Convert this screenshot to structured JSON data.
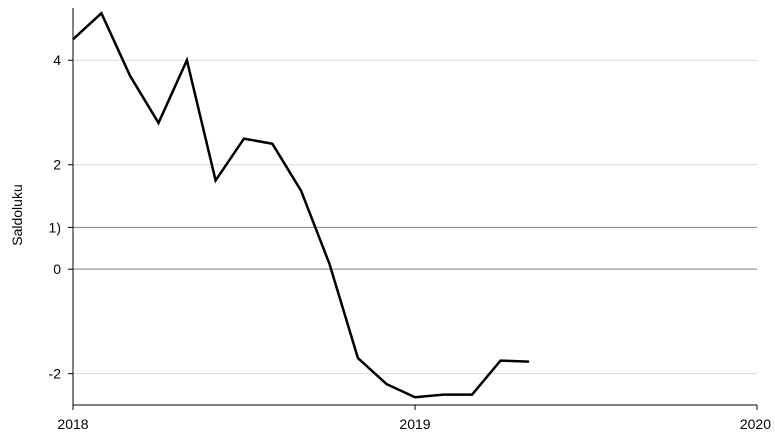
{
  "chart_data": {
    "type": "line",
    "title": "",
    "xlabel": "",
    "ylabel": "Saldoluku",
    "x_ticks": [
      {
        "value": 2018,
        "label": "2018"
      },
      {
        "value": 2019,
        "label": "2019"
      },
      {
        "value": 2020,
        "label": "2020"
      }
    ],
    "y_ticks": [
      {
        "value": 4,
        "label": "4"
      },
      {
        "value": 2,
        "label": "2"
      },
      {
        "value": 0.8,
        "label": "1)"
      },
      {
        "value": 0,
        "label": "0"
      },
      {
        "value": -2,
        "label": "-2"
      }
    ],
    "reference_lines": [
      0.8,
      0
    ],
    "xlim": [
      2018,
      2020
    ],
    "ylim": [
      -2.6,
      5.0
    ],
    "grid": true,
    "line_color": "#000000",
    "grid_color": "#d9d9d9",
    "reference_color": "#7f7f7f",
    "series": [
      {
        "x": [
          2018.0,
          2018.083,
          2018.167,
          2018.25,
          2018.333,
          2018.417,
          2018.5,
          2018.583,
          2018.667,
          2018.75,
          2018.833,
          2018.917,
          2019.0,
          2019.083,
          2019.167,
          2019.25,
          2019.333
        ],
        "values": [
          4.4,
          4.9,
          3.7,
          2.8,
          4.0,
          1.7,
          2.5,
          2.4,
          1.5,
          0.1,
          -1.7,
          -2.2,
          -2.45,
          -2.4,
          -2.4,
          -1.75,
          -1.77
        ]
      }
    ]
  }
}
